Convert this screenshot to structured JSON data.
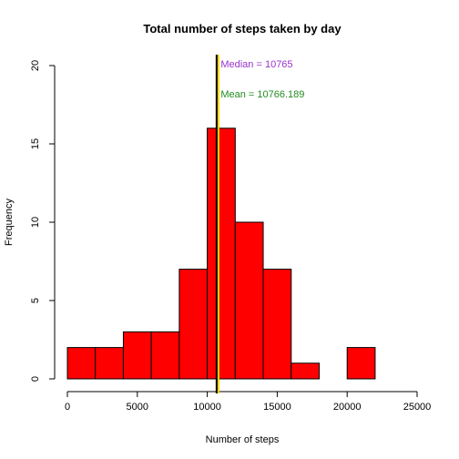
{
  "chart_data": {
    "type": "bar",
    "title": "Total number of steps taken by day",
    "xlabel": "Number of steps",
    "ylabel": "Frequency",
    "bin_edges": [
      0,
      2000,
      4000,
      6000,
      8000,
      10000,
      12000,
      14000,
      16000,
      18000,
      20000,
      22000
    ],
    "values": [
      2,
      2,
      3,
      3,
      7,
      16,
      10,
      7,
      1,
      0,
      2
    ],
    "xlim": [
      0,
      25000
    ],
    "ylim": [
      0,
      20
    ],
    "xticks": [
      0,
      5000,
      10000,
      15000,
      20000,
      25000
    ],
    "yticks": [
      0,
      5,
      10,
      15,
      20
    ],
    "grid": false,
    "colors": {
      "bar_fill": "#ff0000",
      "bar_stroke": "#000000",
      "median_line": "#000000",
      "mean_line": "#ffd700",
      "median_text": "#9932cc",
      "mean_text": "#228b22"
    },
    "median": {
      "value": 10765,
      "label": "Median = 10765"
    },
    "mean": {
      "value": 10766.189,
      "label": "Mean = 10766.189"
    }
  }
}
